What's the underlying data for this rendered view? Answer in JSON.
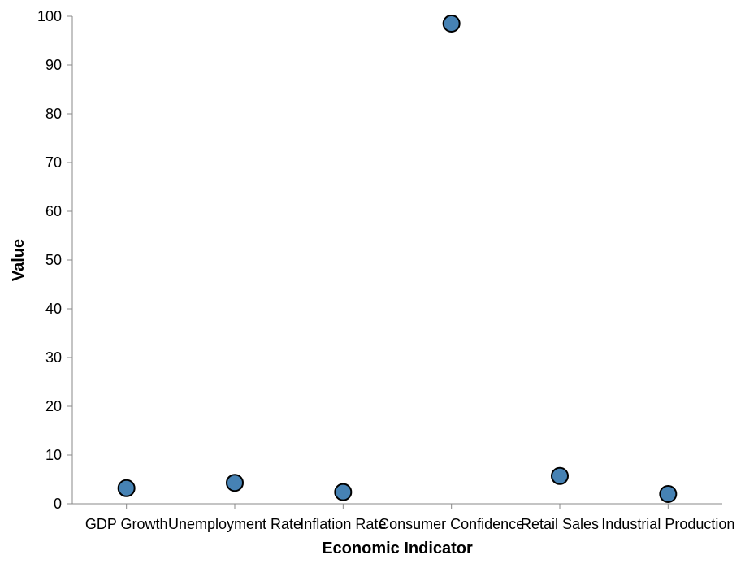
{
  "chart_data": {
    "type": "scatter",
    "title": "",
    "xlabel": "Economic Indicator",
    "ylabel": "Value",
    "categories": [
      "GDP Growth",
      "Unemployment Rate",
      "Inflation Rate",
      "Consumer Confidence",
      "Retail Sales",
      "Industrial Production"
    ],
    "values": [
      3.2,
      4.3,
      2.4,
      98.5,
      5.7,
      2.0
    ],
    "ylim": [
      0,
      100
    ],
    "yticks": [
      0,
      10,
      20,
      30,
      40,
      50,
      60,
      70,
      80,
      90,
      100
    ],
    "grid": false,
    "point_color": "#4682b4",
    "point_stroke": "#000000"
  }
}
